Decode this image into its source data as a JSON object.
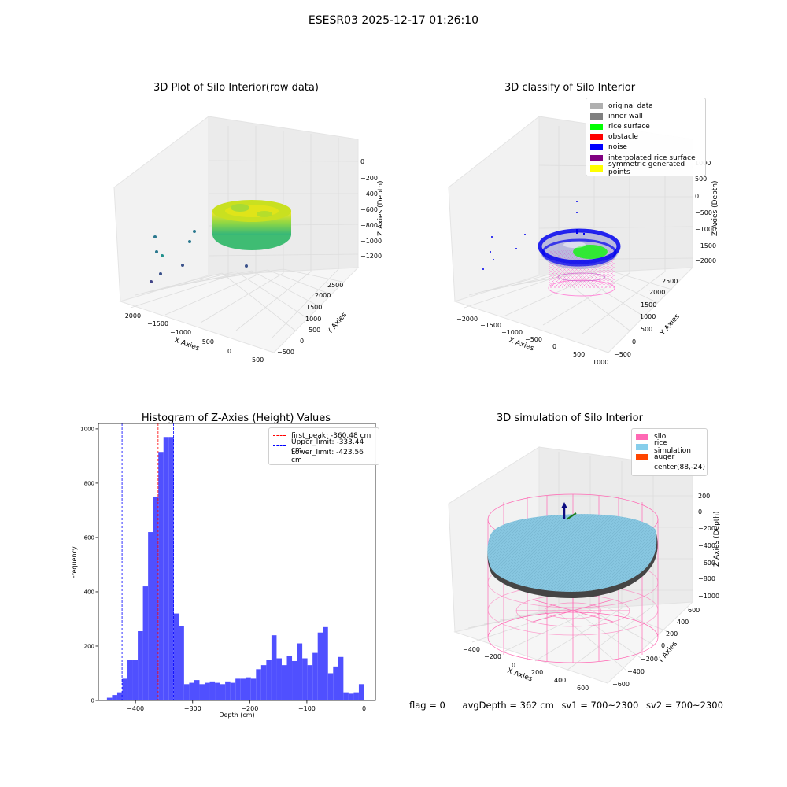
{
  "figure_title": "ESESR03 2025-12-17 01:26:10",
  "status": {
    "flag": "flag = 0",
    "avg_depth": "avgDepth = 362 cm",
    "sv1": "sv1 = 700~2300",
    "sv2": "sv2 = 700~2300"
  },
  "chart_data": [
    {
      "type": "scatter",
      "projection": "3d",
      "title": "3D Plot of Silo Interior(row data)",
      "xlabel": "X Axies",
      "ylabel": "Y Axies",
      "zlabel": "Z Axies (Depth)",
      "xticks": [
        "−2000",
        "−1500",
        "−1000",
        "−500",
        "0",
        "500"
      ],
      "yticks": [
        "−500",
        "0",
        "500",
        "1000",
        "1500",
        "2000",
        "2500"
      ],
      "zticks": [
        "0",
        "−200",
        "−400",
        "−600",
        "−800",
        "−1000",
        "−1200"
      ],
      "colormap": [
        "#3b528b",
        "#21918c",
        "#5ec962",
        "#fde725"
      ],
      "grid": true
    },
    {
      "type": "scatter",
      "projection": "3d",
      "title": "3D classify of Silo Interior",
      "xlabel": "X Axies",
      "ylabel": "Y Axies",
      "zlabel": "Z Axies (Depth)",
      "xticks": [
        "−2000",
        "−1500",
        "−1000",
        "−500",
        "0",
        "500",
        "1000"
      ],
      "yticks": [
        "−500",
        "0",
        "500",
        "1000",
        "1500",
        "2000",
        "2500"
      ],
      "zticks": [
        "1000",
        "500",
        "0",
        "−500",
        "−1000",
        "−1500",
        "−2000"
      ],
      "legend": [
        {
          "label": "original data",
          "color": "#b0b0b0"
        },
        {
          "label": "inner wall",
          "color": "#808080"
        },
        {
          "label": "rice surface",
          "color": "#00ff00"
        },
        {
          "label": "obstacle",
          "color": "#ff0000"
        },
        {
          "label": "noise",
          "color": "#0000ff"
        },
        {
          "label": "interpolated rice surface",
          "color": "#800080"
        },
        {
          "label": "symmetric generated points",
          "color": "#ffff00"
        }
      ],
      "legend_position": "top-right",
      "grid": true
    },
    {
      "type": "bar",
      "title": "Histogram of Z-Axies (Height) Values",
      "xlabel": "Depth (cm)",
      "ylabel": "Frequency",
      "xlim": [
        -465,
        20
      ],
      "ylim": [
        0,
        1020
      ],
      "xticks": [
        -400,
        -300,
        -200,
        -100,
        0
      ],
      "xtick_labels": [
        "−400",
        "−300",
        "−200",
        "−100",
        "0"
      ],
      "yticks": [
        0,
        200,
        400,
        600,
        800,
        1000
      ],
      "bin_start": -450,
      "bin_width": 9,
      "values": [
        10,
        20,
        30,
        80,
        150,
        150,
        255,
        420,
        620,
        750,
        915,
        970,
        970,
        320,
        275,
        60,
        65,
        75,
        60,
        65,
        70,
        65,
        60,
        70,
        65,
        80,
        80,
        85,
        80,
        115,
        130,
        150,
        240,
        155,
        130,
        165,
        145,
        210,
        155,
        130,
        175,
        250,
        270,
        100,
        125,
        160,
        30,
        25,
        30,
        60
      ],
      "bar_color": "#5050ff",
      "reference_lines": [
        {
          "label": "first_peak: -360.48 cm",
          "x": -360.48,
          "color": "#ff0000"
        },
        {
          "label": "Upper_limit: -333.44 cm",
          "x": -333.44,
          "color": "#0000ff"
        },
        {
          "label": "Lower_limit: -423.56 cm",
          "x": -423.56,
          "color": "#0000ff"
        }
      ],
      "legend_position": "top-right",
      "grid": false
    },
    {
      "type": "surface",
      "projection": "3d",
      "title": "3D simulation of Silo Interior",
      "xlabel": "X Axies",
      "ylabel": "Y Axies",
      "zlabel": "Z Axies (Depth)",
      "xticks": [
        "−400",
        "−200",
        "0",
        "200",
        "400",
        "600"
      ],
      "yticks": [
        "−600",
        "−400",
        "−200",
        "0",
        "200",
        "400",
        "600"
      ],
      "zticks": [
        "200",
        "0",
        "−200",
        "−400",
        "−600",
        "−800",
        "−1000"
      ],
      "legend": [
        {
          "label": "silo",
          "color": "#ff69b4"
        },
        {
          "label": "rice simulation",
          "color": "#87ceeb"
        },
        {
          "label": "auger",
          "color": "#ff4500"
        },
        {
          "label": "center(88,-24)",
          "color": ""
        }
      ],
      "legend_position": "top-right",
      "grid": true
    }
  ]
}
